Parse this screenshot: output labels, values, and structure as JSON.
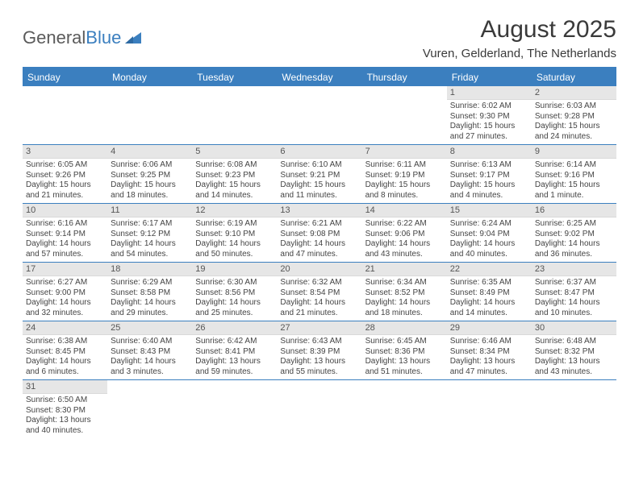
{
  "brand": {
    "word1": "General",
    "word2": "Blue"
  },
  "title": "August 2025",
  "subtitle": "Vuren, Gelderland, The Netherlands",
  "colors": {
    "accent": "#3b7fbf",
    "header_text": "#ffffff",
    "daynum_bg": "#e6e6e6",
    "body_text": "#444444",
    "logo_gray": "#5b5b5b"
  },
  "day_labels": [
    "Sunday",
    "Monday",
    "Tuesday",
    "Wednesday",
    "Thursday",
    "Friday",
    "Saturday"
  ],
  "weeks": [
    [
      null,
      null,
      null,
      null,
      null,
      {
        "n": "1",
        "sr": "Sunrise: 6:02 AM",
        "ss": "Sunset: 9:30 PM",
        "d1": "Daylight: 15 hours",
        "d2": "and 27 minutes."
      },
      {
        "n": "2",
        "sr": "Sunrise: 6:03 AM",
        "ss": "Sunset: 9:28 PM",
        "d1": "Daylight: 15 hours",
        "d2": "and 24 minutes."
      }
    ],
    [
      {
        "n": "3",
        "sr": "Sunrise: 6:05 AM",
        "ss": "Sunset: 9:26 PM",
        "d1": "Daylight: 15 hours",
        "d2": "and 21 minutes."
      },
      {
        "n": "4",
        "sr": "Sunrise: 6:06 AM",
        "ss": "Sunset: 9:25 PM",
        "d1": "Daylight: 15 hours",
        "d2": "and 18 minutes."
      },
      {
        "n": "5",
        "sr": "Sunrise: 6:08 AM",
        "ss": "Sunset: 9:23 PM",
        "d1": "Daylight: 15 hours",
        "d2": "and 14 minutes."
      },
      {
        "n": "6",
        "sr": "Sunrise: 6:10 AM",
        "ss": "Sunset: 9:21 PM",
        "d1": "Daylight: 15 hours",
        "d2": "and 11 minutes."
      },
      {
        "n": "7",
        "sr": "Sunrise: 6:11 AM",
        "ss": "Sunset: 9:19 PM",
        "d1": "Daylight: 15 hours",
        "d2": "and 8 minutes."
      },
      {
        "n": "8",
        "sr": "Sunrise: 6:13 AM",
        "ss": "Sunset: 9:17 PM",
        "d1": "Daylight: 15 hours",
        "d2": "and 4 minutes."
      },
      {
        "n": "9",
        "sr": "Sunrise: 6:14 AM",
        "ss": "Sunset: 9:16 PM",
        "d1": "Daylight: 15 hours",
        "d2": "and 1 minute."
      }
    ],
    [
      {
        "n": "10",
        "sr": "Sunrise: 6:16 AM",
        "ss": "Sunset: 9:14 PM",
        "d1": "Daylight: 14 hours",
        "d2": "and 57 minutes."
      },
      {
        "n": "11",
        "sr": "Sunrise: 6:17 AM",
        "ss": "Sunset: 9:12 PM",
        "d1": "Daylight: 14 hours",
        "d2": "and 54 minutes."
      },
      {
        "n": "12",
        "sr": "Sunrise: 6:19 AM",
        "ss": "Sunset: 9:10 PM",
        "d1": "Daylight: 14 hours",
        "d2": "and 50 minutes."
      },
      {
        "n": "13",
        "sr": "Sunrise: 6:21 AM",
        "ss": "Sunset: 9:08 PM",
        "d1": "Daylight: 14 hours",
        "d2": "and 47 minutes."
      },
      {
        "n": "14",
        "sr": "Sunrise: 6:22 AM",
        "ss": "Sunset: 9:06 PM",
        "d1": "Daylight: 14 hours",
        "d2": "and 43 minutes."
      },
      {
        "n": "15",
        "sr": "Sunrise: 6:24 AM",
        "ss": "Sunset: 9:04 PM",
        "d1": "Daylight: 14 hours",
        "d2": "and 40 minutes."
      },
      {
        "n": "16",
        "sr": "Sunrise: 6:25 AM",
        "ss": "Sunset: 9:02 PM",
        "d1": "Daylight: 14 hours",
        "d2": "and 36 minutes."
      }
    ],
    [
      {
        "n": "17",
        "sr": "Sunrise: 6:27 AM",
        "ss": "Sunset: 9:00 PM",
        "d1": "Daylight: 14 hours",
        "d2": "and 32 minutes."
      },
      {
        "n": "18",
        "sr": "Sunrise: 6:29 AM",
        "ss": "Sunset: 8:58 PM",
        "d1": "Daylight: 14 hours",
        "d2": "and 29 minutes."
      },
      {
        "n": "19",
        "sr": "Sunrise: 6:30 AM",
        "ss": "Sunset: 8:56 PM",
        "d1": "Daylight: 14 hours",
        "d2": "and 25 minutes."
      },
      {
        "n": "20",
        "sr": "Sunrise: 6:32 AM",
        "ss": "Sunset: 8:54 PM",
        "d1": "Daylight: 14 hours",
        "d2": "and 21 minutes."
      },
      {
        "n": "21",
        "sr": "Sunrise: 6:34 AM",
        "ss": "Sunset: 8:52 PM",
        "d1": "Daylight: 14 hours",
        "d2": "and 18 minutes."
      },
      {
        "n": "22",
        "sr": "Sunrise: 6:35 AM",
        "ss": "Sunset: 8:49 PM",
        "d1": "Daylight: 14 hours",
        "d2": "and 14 minutes."
      },
      {
        "n": "23",
        "sr": "Sunrise: 6:37 AM",
        "ss": "Sunset: 8:47 PM",
        "d1": "Daylight: 14 hours",
        "d2": "and 10 minutes."
      }
    ],
    [
      {
        "n": "24",
        "sr": "Sunrise: 6:38 AM",
        "ss": "Sunset: 8:45 PM",
        "d1": "Daylight: 14 hours",
        "d2": "and 6 minutes."
      },
      {
        "n": "25",
        "sr": "Sunrise: 6:40 AM",
        "ss": "Sunset: 8:43 PM",
        "d1": "Daylight: 14 hours",
        "d2": "and 3 minutes."
      },
      {
        "n": "26",
        "sr": "Sunrise: 6:42 AM",
        "ss": "Sunset: 8:41 PM",
        "d1": "Daylight: 13 hours",
        "d2": "and 59 minutes."
      },
      {
        "n": "27",
        "sr": "Sunrise: 6:43 AM",
        "ss": "Sunset: 8:39 PM",
        "d1": "Daylight: 13 hours",
        "d2": "and 55 minutes."
      },
      {
        "n": "28",
        "sr": "Sunrise: 6:45 AM",
        "ss": "Sunset: 8:36 PM",
        "d1": "Daylight: 13 hours",
        "d2": "and 51 minutes."
      },
      {
        "n": "29",
        "sr": "Sunrise: 6:46 AM",
        "ss": "Sunset: 8:34 PM",
        "d1": "Daylight: 13 hours",
        "d2": "and 47 minutes."
      },
      {
        "n": "30",
        "sr": "Sunrise: 6:48 AM",
        "ss": "Sunset: 8:32 PM",
        "d1": "Daylight: 13 hours",
        "d2": "and 43 minutes."
      }
    ],
    [
      {
        "n": "31",
        "sr": "Sunrise: 6:50 AM",
        "ss": "Sunset: 8:30 PM",
        "d1": "Daylight: 13 hours",
        "d2": "and 40 minutes."
      },
      null,
      null,
      null,
      null,
      null,
      null
    ]
  ]
}
